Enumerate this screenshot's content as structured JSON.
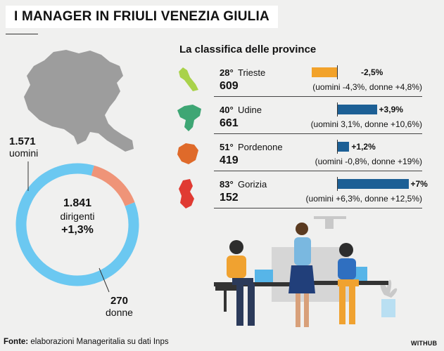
{
  "header": {
    "title": "I MANAGER IN FRIULI VENEZIA GIULIA"
  },
  "donut": {
    "men_value": "1.571",
    "men_label": "uomini",
    "total_value": "1.841",
    "total_label": "dirigenti",
    "total_change": "+1,3%",
    "women_value": "270",
    "women_label": "donne"
  },
  "ranking": {
    "title": "La classifica delle province"
  },
  "chart_data": [
    {
      "type": "pie",
      "labels": [
        "uomini",
        "donne"
      ],
      "values": [
        1571,
        270
      ],
      "colors": [
        "#6bc8f1",
        "#ef9478"
      ]
    },
    {
      "type": "bar",
      "categories": [
        "Trieste",
        "Udine",
        "Pordenone",
        "Gorizia"
      ],
      "values": [
        -2.5,
        3.9,
        1.2,
        7
      ],
      "value_labels": [
        "-2,5%",
        "+3,9%",
        "+1,2%",
        "+7%"
      ],
      "ranks": [
        "28°",
        "40°",
        "51°",
        "83°"
      ],
      "counts": [
        "609",
        "661",
        "419",
        "152"
      ],
      "details": [
        "(uomini -4,3%, donne +4,8%)",
        "(uomini 3,1%, donne +10,6%)",
        "(uomini -0,8%, donne +19%)",
        "(uomini +6,3%, donne +12,5%)"
      ],
      "bar_colors": [
        "#f2a22a",
        "#1c5f95",
        "#1c5f95",
        "#1c5f95"
      ],
      "map_colors": [
        "#a9d24a",
        "#3ea674",
        "#df6a2a",
        "#e03a32"
      ]
    }
  ],
  "footer": {
    "source_label": "Fonte:",
    "source_text": "elaborazioni Manageritalia su dati Inps",
    "brand": "WITHUB"
  }
}
